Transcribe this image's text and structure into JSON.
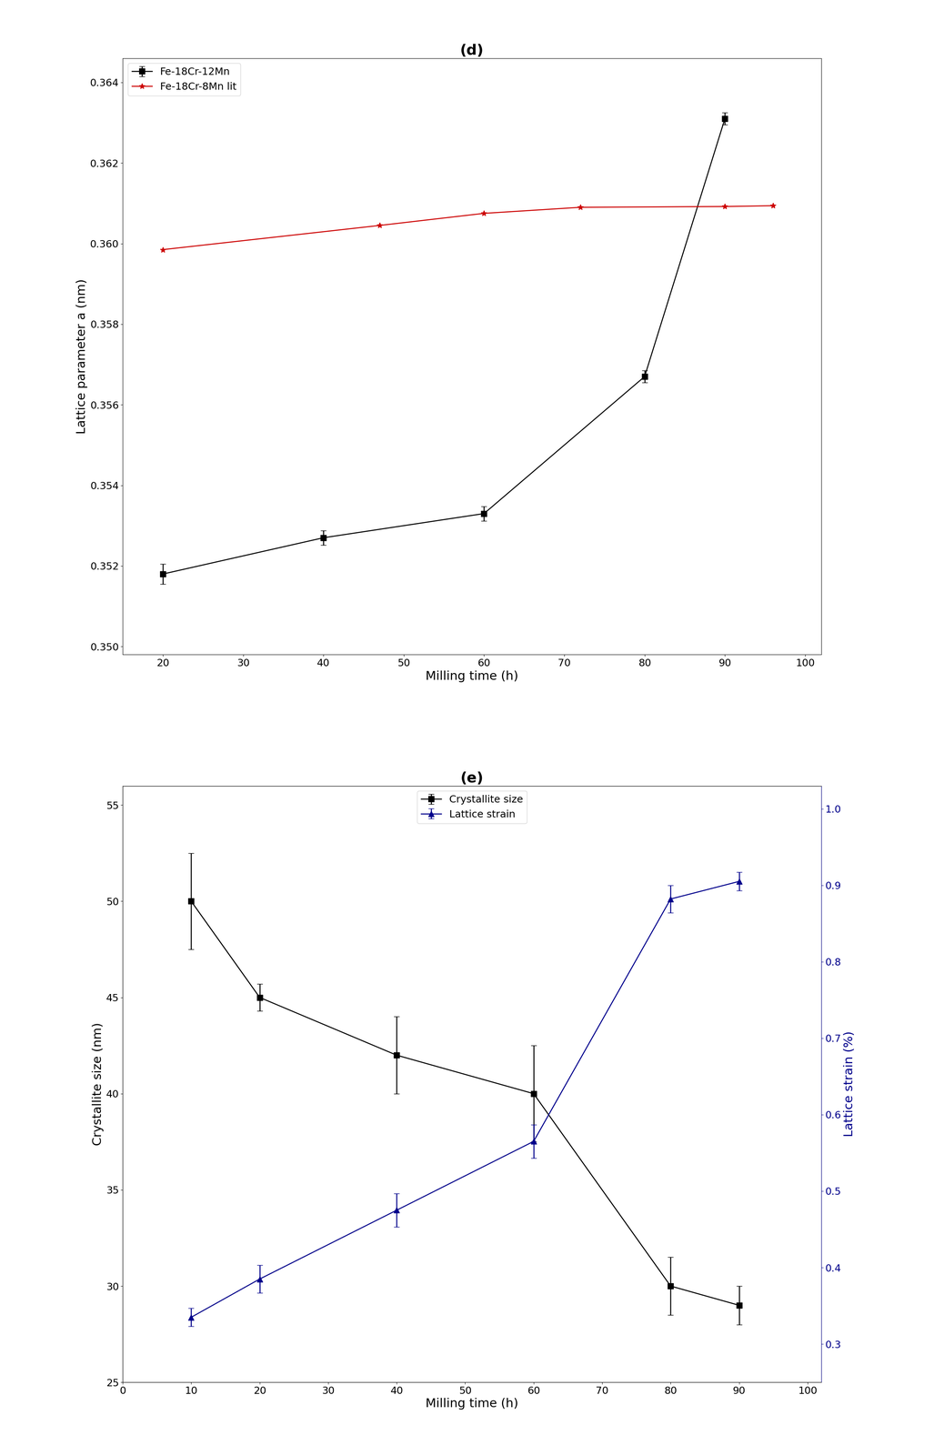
{
  "chart_data": [
    {
      "type": "line",
      "title": "(d)",
      "xlabel": "Milling time (h)",
      "ylabel": "Lattice parameter a (nm)",
      "xlim": [
        15,
        102
      ],
      "ylim": [
        0.3498,
        0.3646
      ],
      "xticks": [
        20,
        30,
        40,
        50,
        60,
        70,
        80,
        90,
        100
      ],
      "yticks": [
        {
          "value": 0.35,
          "label": "0.350"
        },
        0.352,
        0.354,
        0.356,
        0.358,
        {
          "value": 0.36,
          "label": "0.360"
        },
        0.362,
        0.364
      ],
      "legend": "upper left",
      "series": [
        {
          "name": "Fe-18Cr-12Mn",
          "color": "#000000",
          "marker": "square",
          "x": [
            20,
            40,
            60,
            80,
            90
          ],
          "values": [
            0.3518,
            0.3527,
            0.3533,
            0.3567,
            0.3631
          ],
          "yerr": [
            0.00025,
            0.00018,
            0.00018,
            0.00015,
            0.00015
          ]
        },
        {
          "name": "Fe-18Cr-8Mn lit",
          "color": "#cc0000",
          "marker": "star",
          "x": [
            20,
            47,
            60,
            72,
            90,
            96
          ],
          "values": [
            0.35985,
            0.36045,
            0.36075,
            0.3609,
            0.36092,
            0.36094
          ]
        }
      ]
    },
    {
      "type": "line",
      "title": "(e)",
      "xlabel": "Milling time (h)",
      "ylabel": "Crystallite size (nm)",
      "y2label": "Lattice strain (%)",
      "xlim": [
        0,
        102
      ],
      "ylim": [
        25,
        56
      ],
      "y2lim": [
        0.25,
        1.03
      ],
      "xticks": [
        0,
        10,
        20,
        30,
        40,
        50,
        60,
        70,
        80,
        90,
        100
      ],
      "yticks": [
        25,
        30,
        35,
        40,
        45,
        50,
        55
      ],
      "y2ticks": [
        0.3,
        0.4,
        0.5,
        0.6,
        0.7,
        0.8,
        0.9,
        1.0
      ],
      "legend": "upper center",
      "series": [
        {
          "name": "Crystallite size",
          "color": "#000000",
          "marker": "square",
          "x": [
            10,
            20,
            40,
            60,
            80,
            90
          ],
          "values": [
            50.0,
            45.0,
            42.0,
            40.0,
            30.0,
            29.0
          ],
          "yerr": [
            2.5,
            0.7,
            2.0,
            2.5,
            1.5,
            1.0
          ]
        },
        {
          "name": "Lattice strain",
          "color": "#00008B",
          "marker": "triangle",
          "axis": "y2",
          "x": [
            10,
            20,
            40,
            60,
            80,
            90
          ],
          "values": [
            0.335,
            0.385,
            0.475,
            0.565,
            0.882,
            0.905
          ],
          "yerr": [
            0.012,
            0.018,
            0.022,
            0.022,
            0.018,
            0.012
          ]
        }
      ]
    }
  ]
}
